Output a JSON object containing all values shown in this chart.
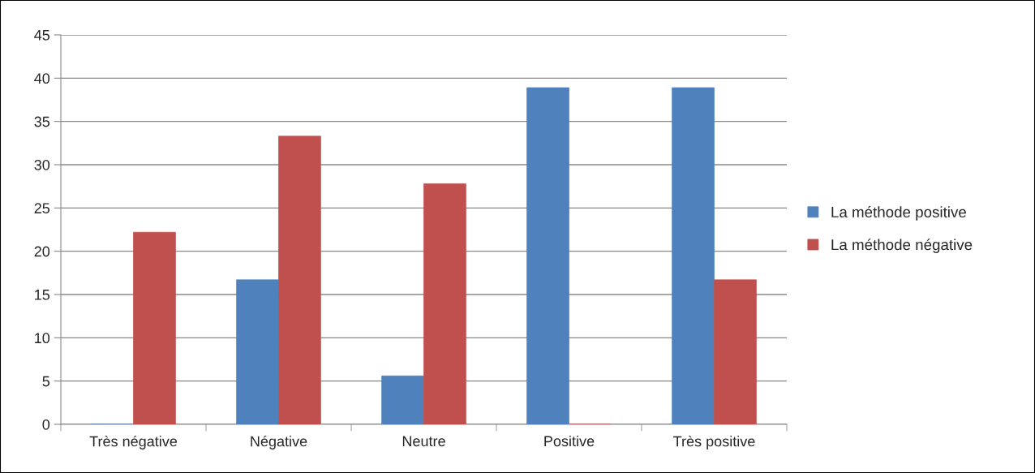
{
  "chart_data": {
    "type": "bar",
    "categories": [
      "Très négative",
      "Négative",
      "Neutre",
      "Positive",
      "Très positive"
    ],
    "series": [
      {
        "name": "La méthode positive",
        "color": "#4f81bd",
        "values": [
          0,
          16.7,
          5.6,
          38.9,
          38.9
        ]
      },
      {
        "name": "La méthode négative",
        "color": "#c0504d",
        "values": [
          22.2,
          33.3,
          27.8,
          0,
          16.7
        ]
      }
    ],
    "ylim": [
      0,
      45
    ],
    "yticks": [
      0,
      5,
      10,
      15,
      20,
      25,
      30,
      35,
      40,
      45
    ],
    "grid": "y",
    "legend": "right"
  }
}
